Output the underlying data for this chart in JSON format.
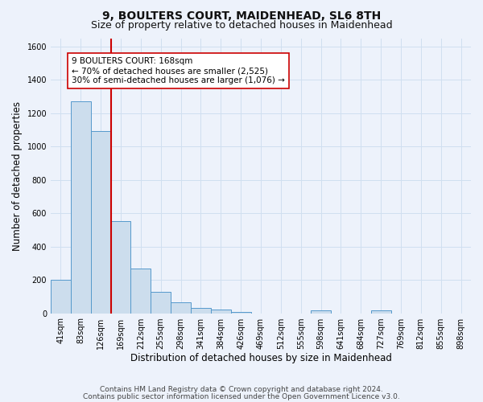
{
  "title": "9, BOULTERS COURT, MAIDENHEAD, SL6 8TH",
  "subtitle": "Size of property relative to detached houses in Maidenhead",
  "xlabel": "Distribution of detached houses by size in Maidenhead",
  "ylabel": "Number of detached properties",
  "footer1": "Contains HM Land Registry data © Crown copyright and database right 2024.",
  "footer2": "Contains public sector information licensed under the Open Government Licence v3.0.",
  "bin_labels": [
    "41sqm",
    "83sqm",
    "126sqm",
    "169sqm",
    "212sqm",
    "255sqm",
    "298sqm",
    "341sqm",
    "384sqm",
    "426sqm",
    "469sqm",
    "512sqm",
    "555sqm",
    "598sqm",
    "641sqm",
    "684sqm",
    "727sqm",
    "769sqm",
    "812sqm",
    "855sqm",
    "898sqm"
  ],
  "bar_heights": [
    200,
    1270,
    1095,
    555,
    270,
    130,
    65,
    30,
    20,
    10,
    0,
    0,
    0,
    15,
    0,
    0,
    15,
    0,
    0,
    0,
    0
  ],
  "bar_color": "#ccdded",
  "bar_edge_color": "#5599cc",
  "grid_color": "#d0dff0",
  "bg_color": "#edf2fb",
  "red_line_x": 2.5,
  "red_line_color": "#cc0000",
  "annotation_text": "9 BOULTERS COURT: 168sqm\n← 70% of detached houses are smaller (2,525)\n30% of semi-detached houses are larger (1,076) →",
  "annotation_box_color": "#ffffff",
  "annotation_box_edge": "#cc0000",
  "ylim": [
    0,
    1650
  ],
  "yticks": [
    0,
    200,
    400,
    600,
    800,
    1000,
    1200,
    1400,
    1600
  ],
  "title_fontsize": 10,
  "subtitle_fontsize": 9,
  "label_fontsize": 8.5,
  "tick_fontsize": 7,
  "footer_fontsize": 6.5,
  "annot_fontsize": 7.5
}
